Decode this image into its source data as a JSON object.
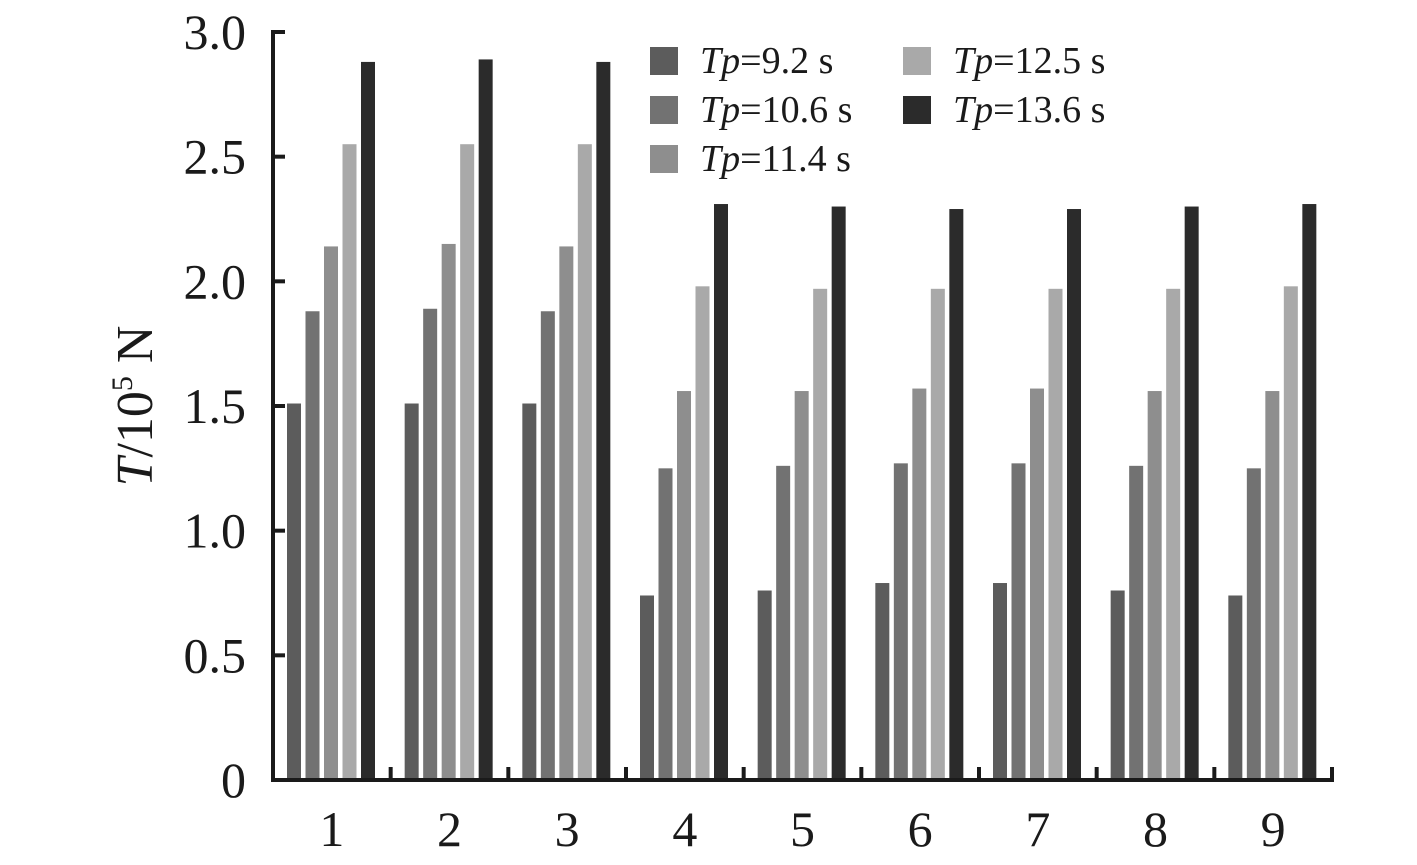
{
  "chart_data": {
    "type": "bar",
    "title": "",
    "xlabel": "",
    "ylabel": {
      "italic": "T",
      "prefix": "/10",
      "superscript": "5",
      "suffix": " N"
    },
    "ylim": [
      0,
      3.0
    ],
    "yticks": [
      "0",
      "0.5",
      "1.0",
      "1.5",
      "2.0",
      "2.5",
      "3.0"
    ],
    "categories": [
      "1",
      "2",
      "3",
      "4",
      "5",
      "6",
      "7",
      "8",
      "9"
    ],
    "grid": false,
    "legend_position": "top-right",
    "series": [
      {
        "name": "Tp=9.2 s",
        "name_parts": {
          "italic": "Tp",
          "rest": "=9.2 s"
        },
        "color": "#5c5c5c",
        "values": [
          1.51,
          1.51,
          1.51,
          0.74,
          0.76,
          0.79,
          0.79,
          0.76,
          0.74
        ]
      },
      {
        "name": "Tp=10.6 s",
        "name_parts": {
          "italic": "Tp",
          "rest": "=10.6 s"
        },
        "color": "#727272",
        "values": [
          1.88,
          1.89,
          1.88,
          1.25,
          1.26,
          1.27,
          1.27,
          1.26,
          1.25
        ]
      },
      {
        "name": "Tp=11.4 s",
        "name_parts": {
          "italic": "Tp",
          "rest": "=11.4 s"
        },
        "color": "#8e8e8e",
        "values": [
          2.14,
          2.15,
          2.14,
          1.56,
          1.56,
          1.57,
          1.57,
          1.56,
          1.56
        ]
      },
      {
        "name": "Tp=12.5 s",
        "name_parts": {
          "italic": "Tp",
          "rest": "=12.5 s"
        },
        "color": "#a9a9a9",
        "values": [
          2.55,
          2.55,
          2.55,
          1.98,
          1.97,
          1.97,
          1.97,
          1.97,
          1.98
        ]
      },
      {
        "name": "Tp=13.6 s",
        "name_parts": {
          "italic": "Tp",
          "rest": "=13.6 s"
        },
        "color": "#2b2b2b",
        "values": [
          2.88,
          2.89,
          2.88,
          2.31,
          2.3,
          2.29,
          2.29,
          2.3,
          2.31
        ]
      }
    ]
  }
}
